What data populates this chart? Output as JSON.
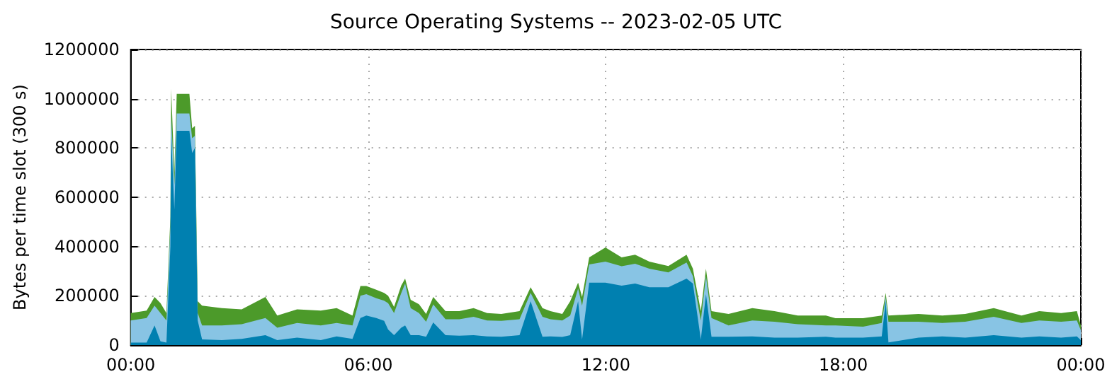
{
  "chart_data": {
    "type": "area",
    "stacked": true,
    "title": "Source Operating Systems -- 2023-02-05 UTC",
    "ylabel": "Bytes per time slot (300 s)",
    "x": [
      0,
      0.4,
      0.6,
      0.75,
      0.9,
      1.0,
      1.02,
      1.1,
      1.16,
      1.48,
      1.55,
      1.62,
      1.69,
      1.8,
      2.3,
      2.8,
      3.4,
      3.7,
      4.2,
      4.8,
      5.2,
      5.6,
      5.8,
      5.95,
      6.2,
      6.4,
      6.5,
      6.65,
      6.83,
      6.93,
      7.07,
      7.28,
      7.46,
      7.64,
      7.95,
      8.3,
      8.66,
      9.0,
      9.36,
      9.82,
      10.1,
      10.4,
      10.6,
      10.9,
      11.1,
      11.3,
      11.4,
      11.58,
      11.99,
      12.4,
      12.74,
      13.1,
      13.58,
      14.04,
      14.2,
      14.4,
      14.53,
      14.67,
      15.1,
      15.7,
      16.26,
      16.85,
      17.56,
      17.8,
      18.5,
      18.97,
      19.07,
      19.14,
      19.9,
      20.5,
      21.08,
      21.8,
      22.5,
      22.95,
      23.5,
      23.9,
      24
    ],
    "series": [
      {
        "color": "#0080b0",
        "values": [
          10000,
          10000,
          80000,
          15000,
          10000,
          400000,
          850000,
          550000,
          870000,
          870000,
          780000,
          800000,
          100000,
          23000,
          20000,
          25000,
          40000,
          20000,
          30000,
          20000,
          35000,
          25000,
          110000,
          120000,
          110000,
          98000,
          63000,
          40000,
          70000,
          80000,
          40000,
          40000,
          34000,
          92000,
          40000,
          38000,
          40000,
          35000,
          34000,
          40000,
          178000,
          34000,
          35000,
          33000,
          40000,
          178000,
          23000,
          253000,
          253000,
          241000,
          250000,
          235000,
          235000,
          270000,
          250000,
          23000,
          207000,
          34000,
          34000,
          35000,
          30000,
          30000,
          34000,
          30000,
          30000,
          35000,
          178000,
          11000,
          30000,
          35000,
          30000,
          40000,
          30000,
          35000,
          30000,
          35000,
          20000
        ]
      },
      {
        "color": "#88c4e4",
        "values": [
          90000,
          100000,
          80000,
          115000,
          90000,
          80000,
          80000,
          100000,
          70000,
          70000,
          60000,
          50000,
          30000,
          57000,
          60000,
          60000,
          70000,
          50000,
          60000,
          60000,
          55000,
          55000,
          90000,
          87000,
          80000,
          82000,
          107000,
          90000,
          140000,
          170000,
          110000,
          90000,
          61000,
          73000,
          65000,
          67000,
          75000,
          65000,
          64000,
          65000,
          34000,
          81000,
          70000,
          67000,
          80000,
          52000,
          137000,
          74000,
          86000,
          79000,
          80000,
          75000,
          60000,
          65000,
          30000,
          77000,
          73000,
          76000,
          46000,
          65000,
          65000,
          55000,
          46000,
          50000,
          45000,
          55000,
          17000,
          84000,
          65000,
          55000,
          65000,
          75000,
          60000,
          65000,
          65000,
          65000,
          40000
        ]
      },
      {
        "color": "#4c9a2a",
        "values": [
          30000,
          30000,
          35000,
          40000,
          30000,
          40000,
          110000,
          50000,
          80000,
          80000,
          40000,
          40000,
          48000,
          80000,
          70000,
          60000,
          85000,
          50000,
          55000,
          60000,
          60000,
          40000,
          40000,
          33000,
          35000,
          32000,
          30000,
          25000,
          31000,
          20000,
          34000,
          36000,
          31000,
          30000,
          33000,
          33000,
          35000,
          30000,
          28000,
          33000,
          23000,
          35000,
          33000,
          26000,
          58000,
          23000,
          35000,
          29000,
          57000,
          36000,
          37000,
          29000,
          26000,
          32000,
          30000,
          38000,
          30000,
          28000,
          46000,
          50000,
          43000,
          35000,
          40000,
          29000,
          34000,
          30000,
          17000,
          25000,
          31000,
          30000,
          31000,
          35000,
          30000,
          38000,
          35000,
          38000,
          20000
        ]
      }
    ],
    "xlim": [
      0,
      24
    ],
    "xticks": [
      {
        "value": 0,
        "label": "00:00"
      },
      {
        "value": 6,
        "label": "06:00"
      },
      {
        "value": 12,
        "label": "12:00"
      },
      {
        "value": 18,
        "label": "18:00"
      },
      {
        "value": 24,
        "label": "00:00"
      }
    ],
    "ylim": [
      0,
      1200000
    ],
    "yticks": [
      0,
      200000,
      400000,
      600000,
      800000,
      1000000,
      1200000
    ],
    "grid": true
  }
}
